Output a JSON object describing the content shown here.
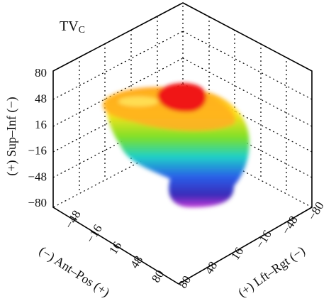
{
  "title": {
    "text": "TV",
    "subscript": "C"
  },
  "axes": {
    "sup_inf": {
      "label": "(+) Sup–Inf (−)",
      "ticks": [
        "80",
        "48",
        "16",
        "−16",
        "−48",
        "−80"
      ]
    },
    "ant_pos": {
      "label": "(−) Ant–Pos (+)",
      "ticks": [
        "−48",
        "−16",
        "16",
        "48",
        "80"
      ]
    },
    "lft_rgt": {
      "label": "(+) Lft–Rgt (−)",
      "ticks": [
        "80",
        "48",
        "16",
        "−16",
        "−48",
        "−80"
      ]
    }
  }
}
